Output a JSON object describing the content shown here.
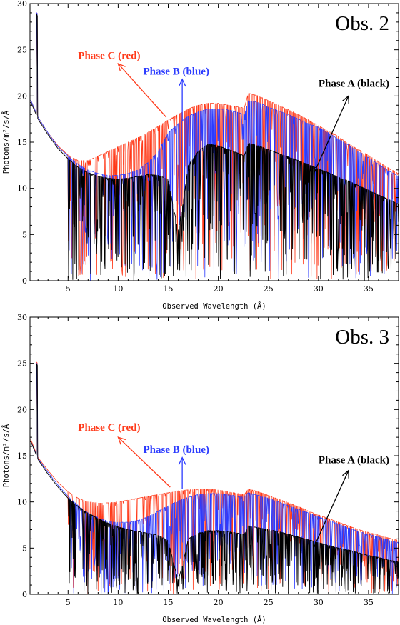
{
  "chart_data": [
    {
      "type": "line",
      "title": "Obs. 2",
      "xlabel": "Observed Wavelength (Å)",
      "ylabel": "Photons/m²/s/Å",
      "xlim": [
        1.2,
        38
      ],
      "ylim": [
        0,
        30
      ],
      "xticks": [
        5,
        10,
        15,
        20,
        25,
        30,
        35
      ],
      "yticks": [
        0,
        5,
        10,
        15,
        20,
        25,
        30
      ],
      "annotations": [
        {
          "text": "Phase C (red)",
          "color": "#ff3a1a",
          "x": 6.0,
          "y": 24.0,
          "arrow_from": [
            14.8,
            17.7
          ],
          "arrow_to": [
            10.0,
            23.5
          ]
        },
        {
          "text": "Phase B (blue)",
          "color": "#2b3bff",
          "x": 12.5,
          "y": 22.3,
          "arrow_from": [
            16.4,
            17.3
          ],
          "arrow_to": [
            16.4,
            21.8
          ]
        },
        {
          "text": "Phase A (black)",
          "color": "#000000",
          "x": 30.0,
          "y": 21.0,
          "arrow_from": [
            29.5,
            11.5
          ],
          "arrow_to": [
            33.0,
            20.0
          ]
        }
      ],
      "series": [
        {
          "color": "#ff3a1a",
          "x": [
            1.3,
            2,
            3,
            4,
            5,
            6,
            7,
            8,
            9,
            10,
            11,
            12,
            13,
            14,
            15,
            16,
            17,
            18,
            19,
            20,
            21,
            22,
            22.6,
            23,
            24,
            25,
            26,
            27,
            28,
            29,
            30,
            31,
            32,
            33,
            34,
            35,
            36,
            37,
            38
          ],
          "y": [
            19.5,
            17.7,
            16.0,
            14.6,
            13.6,
            13.0,
            13.0,
            13.5,
            14.0,
            14.5,
            15.0,
            15.5,
            16.1,
            16.7,
            17.4,
            18.0,
            18.6,
            19.0,
            19.2,
            19.2,
            19.0,
            18.8,
            18.7,
            20.3,
            20.0,
            19.5,
            19.0,
            18.5,
            18.0,
            17.4,
            16.8,
            16.2,
            15.6,
            14.8,
            14.2,
            13.6,
            12.9,
            12.2,
            11.6
          ]
        },
        {
          "color": "#2b3bff",
          "x": [
            1.3,
            2,
            3,
            4,
            5,
            6,
            7,
            8,
            9,
            10,
            11,
            12,
            13,
            14,
            15,
            16,
            17,
            18,
            19,
            20,
            21,
            22,
            22.6,
            23,
            24,
            25,
            26,
            27,
            28,
            29,
            30,
            31,
            32,
            33,
            34,
            35,
            36,
            37,
            38
          ],
          "y": [
            19.5,
            17.7,
            16.0,
            14.5,
            13.5,
            12.6,
            12.0,
            11.6,
            11.4,
            11.4,
            11.6,
            12.0,
            12.8,
            14.0,
            16.0,
            17.0,
            17.8,
            18.3,
            18.6,
            18.6,
            18.5,
            18.2,
            18.0,
            19.5,
            19.3,
            18.8,
            18.4,
            18.0,
            17.5,
            17.0,
            16.6,
            16.0,
            15.3,
            14.7,
            14.0,
            13.3,
            12.6,
            11.9,
            11.3
          ]
        },
        {
          "color": "#000000",
          "x": [
            1.3,
            2,
            3,
            4,
            5,
            6,
            7,
            8,
            9,
            10,
            11,
            12,
            13,
            14,
            15,
            15.5,
            16,
            16.5,
            17,
            18,
            19,
            20,
            21,
            22,
            22.6,
            23,
            24,
            25,
            26,
            27,
            28,
            29,
            30,
            31,
            32,
            33,
            34,
            35,
            36,
            37,
            38
          ],
          "y": [
            19.3,
            17.5,
            15.8,
            14.3,
            13.2,
            12.3,
            11.7,
            11.3,
            11.1,
            11.0,
            11.1,
            11.3,
            11.5,
            11.4,
            11.0,
            8.0,
            5.5,
            8.5,
            12.5,
            14.0,
            14.8,
            14.6,
            14.2,
            13.8,
            13.5,
            14.9,
            14.6,
            14.2,
            13.8,
            13.4,
            13.0,
            12.6,
            12.1,
            11.7,
            11.2,
            10.8,
            10.3,
            9.8,
            9.3,
            8.8,
            8.3
          ]
        }
      ]
    },
    {
      "type": "line",
      "title": "Obs. 3",
      "xlabel": "Observed Wavelength (Å)",
      "ylabel": "Photons/m²/s/Å",
      "xlim": [
        1.2,
        38
      ],
      "ylim": [
        0,
        30
      ],
      "xticks": [
        5,
        10,
        15,
        20,
        25,
        30,
        35
      ],
      "yticks": [
        0,
        5,
        10,
        15,
        20,
        25,
        30
      ],
      "annotations": [
        {
          "text": "Phase C (red)",
          "color": "#ff3a1a",
          "x": 6.0,
          "y": 17.7,
          "arrow_from": [
            15.2,
            11.6
          ],
          "arrow_to": [
            10.0,
            17.0
          ]
        },
        {
          "text": "Phase B (blue)",
          "color": "#2b3bff",
          "x": 12.5,
          "y": 15.3,
          "arrow_from": [
            16.4,
            11.4
          ],
          "arrow_to": [
            16.4,
            14.8
          ]
        },
        {
          "text": "Phase A (black)",
          "color": "#000000",
          "x": 30.0,
          "y": 14.2,
          "arrow_from": [
            29.5,
            5.0
          ],
          "arrow_to": [
            33.0,
            13.4
          ]
        }
      ],
      "series": [
        {
          "color": "#ff3a1a",
          "x": [
            1.3,
            2,
            3,
            4,
            5,
            6,
            7,
            8,
            9,
            10,
            11,
            12,
            13,
            14,
            15,
            16,
            17,
            18,
            19,
            20,
            21,
            22,
            22.6,
            23,
            24,
            25,
            26,
            27,
            28,
            29,
            30,
            31,
            32,
            33,
            34,
            35,
            36,
            37,
            38
          ],
          "y": [
            16.7,
            14.8,
            13.4,
            12.1,
            11.1,
            10.4,
            10.0,
            9.9,
            9.9,
            10.0,
            10.2,
            10.4,
            10.6,
            10.8,
            11.0,
            11.2,
            11.3,
            11.4,
            11.4,
            11.3,
            11.1,
            10.9,
            10.8,
            11.4,
            11.1,
            10.7,
            10.3,
            9.9,
            9.5,
            9.0,
            8.6,
            8.2,
            7.8,
            7.4,
            7.0,
            6.7,
            6.4,
            6.1,
            5.8
          ]
        },
        {
          "color": "#2b3bff",
          "x": [
            1.3,
            2,
            3,
            4,
            5,
            6,
            7,
            8,
            9,
            10,
            11,
            12,
            13,
            14,
            15,
            16,
            17,
            18,
            19,
            20,
            21,
            22,
            22.6,
            23,
            24,
            25,
            26,
            27,
            28,
            29,
            30,
            31,
            32,
            33,
            34,
            35,
            36,
            37,
            38
          ],
          "y": [
            16.5,
            14.7,
            13.2,
            11.8,
            10.6,
            9.6,
            8.8,
            8.3,
            7.9,
            7.8,
            7.8,
            8.0,
            8.4,
            9.0,
            9.6,
            10.1,
            10.5,
            10.8,
            10.9,
            10.9,
            10.8,
            10.6,
            10.5,
            11.0,
            10.7,
            10.4,
            10.0,
            9.6,
            9.2,
            8.8,
            8.4,
            8.0,
            7.6,
            7.2,
            6.8,
            6.5,
            6.2,
            5.9,
            5.6
          ]
        },
        {
          "color": "#000000",
          "x": [
            1.3,
            2,
            3,
            4,
            5,
            6,
            7,
            8,
            9,
            10,
            11,
            12,
            13,
            14,
            15,
            15.5,
            16,
            16.5,
            17,
            18,
            19,
            20,
            21,
            22,
            22.6,
            23,
            24,
            25,
            26,
            27,
            28,
            29,
            30,
            31,
            32,
            33,
            34,
            35,
            36,
            37,
            38
          ],
          "y": [
            16.5,
            14.6,
            13.0,
            11.6,
            10.4,
            9.5,
            8.8,
            8.2,
            7.7,
            7.3,
            7.0,
            6.8,
            6.6,
            6.4,
            5.8,
            3.5,
            1.5,
            3.5,
            6.0,
            6.6,
            6.9,
            6.9,
            6.8,
            6.6,
            6.5,
            7.4,
            7.2,
            7.0,
            6.8,
            6.5,
            6.2,
            5.9,
            5.6,
            5.3,
            5.0,
            4.8,
            4.5,
            4.2,
            4.0,
            3.7,
            3.5
          ]
        }
      ]
    }
  ]
}
